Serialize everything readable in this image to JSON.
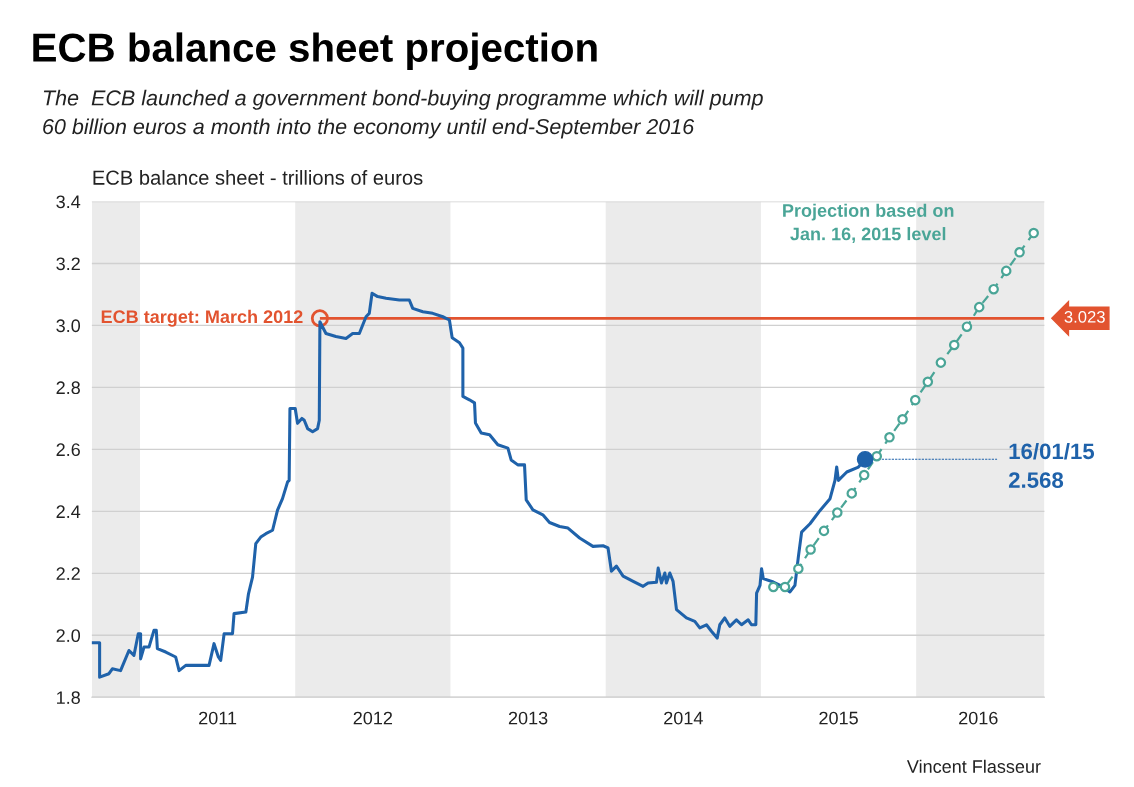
{
  "chart_data": {
    "type": "line",
    "title": "ECB balance sheet projection",
    "subtitle": "The  ECB launched a government bond-buying programme which will pump\n60 billion euros a month into the economy until end-September 2016",
    "ylabel": "ECB balance sheet - trillions of euros",
    "xlim": [
      2010.69,
      2016.826
    ],
    "xticks": [
      {
        "value": 2011.5,
        "label": "2011"
      },
      {
        "value": 2012.5,
        "label": "2012"
      },
      {
        "value": 2013.5,
        "label": "2013"
      },
      {
        "value": 2014.5,
        "label": "2014"
      },
      {
        "value": 2015.5,
        "label": "2015"
      },
      {
        "value": 2016.4,
        "label": "2016"
      }
    ],
    "ylim": [
      1.8,
      3.4
    ],
    "yticks": [
      1.8,
      {
        "value": 2,
        "label": "2.0"
      },
      2.2,
      2.4,
      2.6,
      2.8,
      {
        "value": 3,
        "label": "3.0"
      },
      3.2,
      3.4
    ],
    "grid": "y",
    "series": [
      {
        "color": "#1f62aa",
        "marker": "none",
        "line_style": "solid",
        "x": [
          2010.69,
          2010.74,
          2010.74,
          2010.8,
          2010.822,
          2010.875,
          2010.929,
          2010.961,
          2010.989,
          2011.004,
          2011.004,
          2011.026,
          2011.058,
          2011.09,
          2011.105,
          2011.112,
          2011.166,
          2011.23,
          2011.252,
          2011.295,
          2011.359,
          2011.445,
          2011.477,
          2011.505,
          2011.52,
          2011.542,
          2011.596,
          2011.606,
          2011.682,
          2011.699,
          2011.725,
          2011.746,
          2011.778,
          2011.811,
          2011.854,
          2011.886,
          2011.918,
          2011.951,
          2011.961,
          2011.966,
          2012.0,
          2012.015,
          2012.043,
          2012.058,
          2012.08,
          2012.112,
          2012.144,
          2012.155,
          2012.159,
          2012.198,
          2012.262,
          2012.327,
          2012.37,
          2012.413,
          2012.456,
          2012.477,
          2012.495,
          2012.531,
          2012.585,
          2012.671,
          2012.735,
          2012.757,
          2012.822,
          2012.886,
          2012.951,
          2012.972,
          2012.993,
          2013.011,
          2013.058,
          2013.08,
          2013.08,
          2013.122,
          2013.155,
          2013.161,
          2013.198,
          2013.252,
          2013.305,
          2013.37,
          2013.391,
          2013.434,
          2013.477,
          2013.488,
          2013.531,
          2013.595,
          2013.638,
          2013.703,
          2013.757,
          2013.832,
          2013.918,
          2013.983,
          2014.015,
          2014.037,
          2014.069,
          2014.112,
          2014.177,
          2014.241,
          2014.273,
          2014.327,
          2014.338,
          2014.359,
          2014.381,
          2014.391,
          2014.413,
          2014.434,
          2014.456,
          2014.52,
          2014.574,
          2014.606,
          2014.649,
          2014.681,
          2014.718,
          2014.735,
          2014.767,
          2014.799,
          2014.842,
          2014.875,
          2014.918,
          2014.939,
          2014.967,
          2014.972,
          2014.994,
          2015.004,
          2015.015,
          2015.08,
          2015.144,
          2015.187,
          2015.219,
          2015.241,
          2015.262,
          2015.316,
          2015.381,
          2015.445,
          2015.477,
          2015.488,
          2015.499,
          2015.553,
          2015.628,
          2015.671
        ],
        "values": [
          1.976,
          1.976,
          1.865,
          1.876,
          1.892,
          1.886,
          1.951,
          1.935,
          2.005,
          2.005,
          1.924,
          1.962,
          1.962,
          2.016,
          2.016,
          1.957,
          1.946,
          1.93,
          1.886,
          1.903,
          1.903,
          1.903,
          1.973,
          1.93,
          1.919,
          2.005,
          2.005,
          2.07,
          2.075,
          2.134,
          2.188,
          2.296,
          2.317,
          2.328,
          2.339,
          2.404,
          2.441,
          2.495,
          2.5,
          2.732,
          2.732,
          2.684,
          2.7,
          2.694,
          2.667,
          2.657,
          2.667,
          2.694,
          3.012,
          2.974,
          2.964,
          2.958,
          2.974,
          2.974,
          3.028,
          3.039,
          3.104,
          3.093,
          3.088,
          3.082,
          3.082,
          3.055,
          3.044,
          3.039,
          3.028,
          3.023,
          3.018,
          2.96,
          2.944,
          2.927,
          2.771,
          2.76,
          2.75,
          2.685,
          2.653,
          2.647,
          2.615,
          2.604,
          2.566,
          2.55,
          2.55,
          2.437,
          2.405,
          2.389,
          2.364,
          2.351,
          2.346,
          2.314,
          2.287,
          2.289,
          2.282,
          2.207,
          2.223,
          2.191,
          2.174,
          2.158,
          2.169,
          2.171,
          2.217,
          2.169,
          2.201,
          2.169,
          2.201,
          2.174,
          2.083,
          2.056,
          2.045,
          2.024,
          2.034,
          2.013,
          1.991,
          2.034,
          2.056,
          2.029,
          2.05,
          2.034,
          2.05,
          2.034,
          2.034,
          2.136,
          2.161,
          2.215,
          2.183,
          2.172,
          2.156,
          2.14,
          2.161,
          2.253,
          2.333,
          2.36,
          2.403,
          2.441,
          2.5,
          2.543,
          2.5,
          2.527,
          2.543,
          2.568
        ]
      },
      {
        "color": "#4aa597",
        "marker": "circle",
        "line_style": "dashed",
        "x": [
          2015.08,
          2015.155,
          2015.241,
          2015.32,
          2015.406,
          2015.492,
          2015.585,
          2015.665,
          2015.746,
          2015.828,
          2015.912,
          2015.994,
          2016.075,
          2016.159,
          2016.245,
          2016.327,
          2016.406,
          2016.499,
          2016.58,
          2016.666,
          2016.757
        ],
        "values": [
          2.156,
          2.156,
          2.215,
          2.277,
          2.337,
          2.396,
          2.458,
          2.517,
          2.578,
          2.639,
          2.697,
          2.759,
          2.818,
          2.88,
          2.937,
          2.996,
          3.059,
          3.117,
          3.176,
          3.236,
          3.298
        ]
      }
    ],
    "ref_lines": [
      {
        "axis": "y",
        "value": 3.023,
        "label": "3.023",
        "color": "#e2532f",
        "line_style": "solid"
      }
    ],
    "bands": [
      {
        "axis": "x",
        "from": 2010.69,
        "to": 2011.0,
        "color": "#ebebeb"
      },
      {
        "axis": "x",
        "from": 2012.0,
        "to": 2013.0,
        "color": "#ebebeb"
      },
      {
        "axis": "x",
        "from": 2014.0,
        "to": 2015.0,
        "color": "#ebebeb"
      },
      {
        "axis": "x",
        "from": 2016.0,
        "to": 2016.826,
        "color": "#ebebeb"
      }
    ],
    "annotations": [
      {
        "text": "ECB target: March 2012",
        "x": 2012.159,
        "y": 3.023
      },
      {
        "text": "16/01/15\n2.568",
        "x": 2015.671,
        "y": 2.568
      },
      "Projection based on\nJan. 16, 2015 level",
      "Vincent Flasseur"
    ]
  }
}
